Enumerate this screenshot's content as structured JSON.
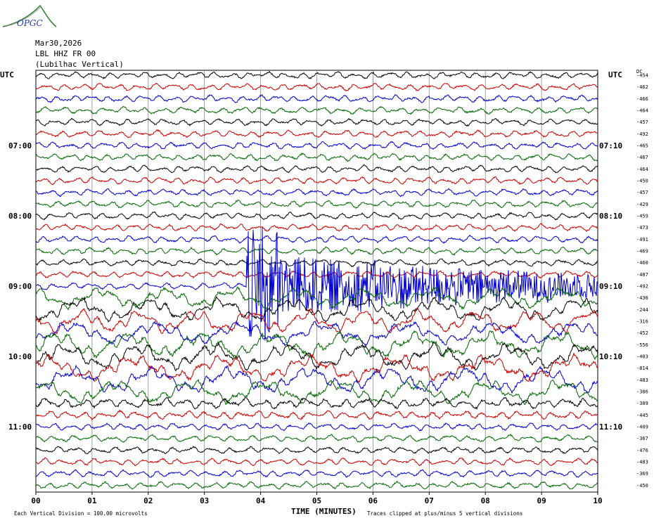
{
  "header": {
    "logo_text": "OPGC",
    "date": "Mar30,2026",
    "station": "LBL HHZ FR 00",
    "location": "(Lubilhac Vertical)"
  },
  "left_label": "UTC",
  "right_label": "UTC",
  "dc_label": "DC",
  "footer": {
    "xlabel": "TIME (MINUTES)",
    "scale": "Each Vertical Division =  100.00 microvolts",
    "clip_note": "Traces clipped at plus/minus 5 vertical divisions"
  },
  "colors": {
    "black": "#000000",
    "red": "#cc0000",
    "blue": "#0000cc",
    "green": "#006600",
    "grid": "#888888"
  },
  "chart_data": {
    "type": "line",
    "title": "",
    "xlabel": "TIME (MINUTES)",
    "ylabel": "",
    "x_ticks": [
      "00",
      "01",
      "02",
      "03",
      "04",
      "05",
      "06",
      "07",
      "08",
      "09",
      "10"
    ],
    "xlim": [
      0,
      10
    ],
    "left_time_labels": [
      {
        "trace": 6,
        "label": "07:00"
      },
      {
        "trace": 12,
        "label": "08:00"
      },
      {
        "trace": 18,
        "label": "09:00"
      },
      {
        "trace": 24,
        "label": "10:00"
      },
      {
        "trace": 30,
        "label": "11:00"
      }
    ],
    "right_time_labels": [
      {
        "trace": 6,
        "label": "07:10"
      },
      {
        "trace": 12,
        "label": "08:10"
      },
      {
        "trace": 18,
        "label": "09:10"
      },
      {
        "trace": 24,
        "label": "10:10"
      },
      {
        "trace": 30,
        "label": "11:10"
      }
    ],
    "trace_colors": [
      "black",
      "red",
      "blue",
      "green"
    ],
    "dc_offsets": [
      -454,
      -462,
      -466,
      -464,
      -457,
      -492,
      -465,
      -467,
      -464,
      -450,
      -457,
      -429,
      -459,
      -473,
      -491,
      -469,
      -460,
      -487,
      -492,
      -436,
      -244,
      -316,
      -452,
      -556,
      -403,
      -814,
      -483,
      -386,
      -309,
      -445,
      -409,
      -367,
      -476,
      -483,
      -369,
      -450
    ],
    "trace_amplitude_divisions": [
      1,
      1,
      1,
      1,
      1,
      1,
      1,
      1,
      1,
      1,
      1,
      1,
      1,
      1,
      1,
      1,
      1,
      1,
      1,
      1.6,
      1.8,
      1.8,
      1.8,
      2,
      2,
      2,
      2,
      1.8,
      1.5,
      1.2,
      1,
      1,
      1,
      1,
      1,
      1
    ],
    "event": {
      "trace": 18,
      "start_minute": 3.75,
      "end_minute": 10,
      "peak_minute": 3.8,
      "note": "large clipped signal"
    }
  }
}
